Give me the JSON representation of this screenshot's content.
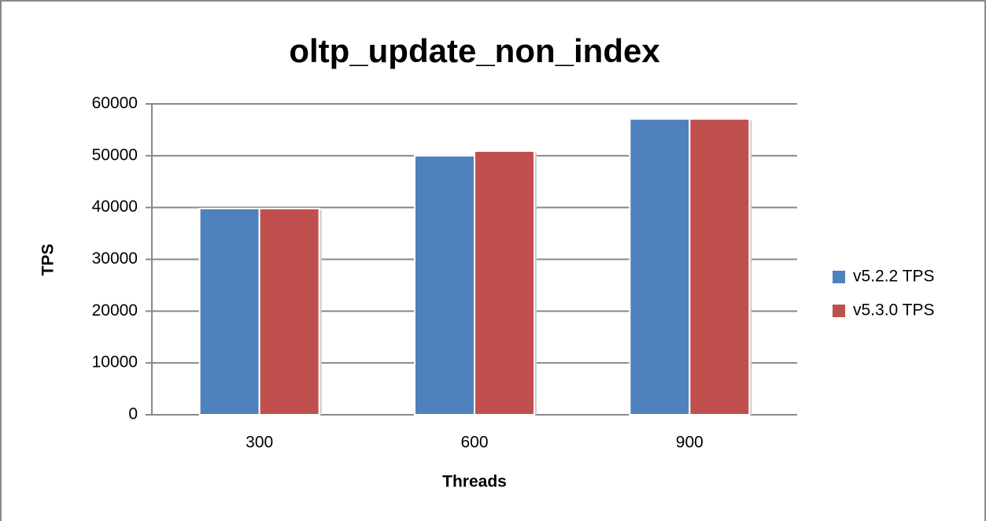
{
  "chart_data": {
    "type": "bar",
    "title": "oltp_update_non_index",
    "x_label": "Threads",
    "y_label": "TPS",
    "categories": [
      "300",
      "600",
      "900"
    ],
    "series": [
      {
        "name": "v5.2.2 TPS",
        "color": "#4f81bd",
        "values": [
          39800,
          50000,
          57100
        ]
      },
      {
        "name": "v5.3.0 TPS",
        "color": "#c0504d",
        "values": [
          39800,
          50900,
          57100
        ]
      }
    ],
    "ylim": [
      0,
      60000
    ],
    "yticks": [
      0,
      10000,
      20000,
      30000,
      40000,
      50000,
      60000
    ],
    "grid": true,
    "legend": "right"
  }
}
